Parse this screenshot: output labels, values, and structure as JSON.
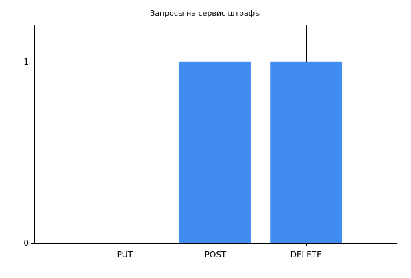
{
  "chart_data": {
    "type": "bar",
    "title": "Запросы на сервис штрафы",
    "categories": [
      "PUT",
      "POST",
      "DELETE"
    ],
    "values": [
      0,
      1,
      1
    ],
    "ylim": [
      0,
      1.2
    ],
    "yticks": [
      0,
      1
    ],
    "xlabel": "",
    "ylabel": "",
    "grid": true,
    "colors": {
      "bar": "#418CF0",
      "axis": "#000000",
      "grid": "#000000"
    }
  }
}
